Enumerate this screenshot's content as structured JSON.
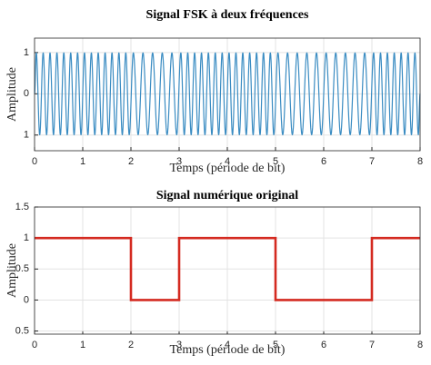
{
  "chart_data": [
    {
      "type": "line",
      "title": "Signal FSK à deux fréquences",
      "xlabel": "Temps (période de bit)",
      "ylabel": "Amplitude",
      "xlim": [
        0,
        8
      ],
      "xticks": [
        0,
        1,
        2,
        3,
        4,
        5,
        6,
        7,
        8
      ],
      "ylim": [
        -1.38,
        1.35
      ],
      "yticks": [
        {
          "value": -1,
          "label": "1"
        },
        0,
        1
      ],
      "grid": true,
      "smooth": true,
      "series": [
        {
          "color": "#3a8cc2",
          "x": [
            0,
            0.036,
            0.107,
            0.179,
            0.25,
            0.321,
            0.393,
            0.464,
            0.536,
            0.607,
            0.679,
            0.75,
            0.821,
            0.893,
            0.964,
            1.036,
            1.107,
            1.179,
            1.25,
            1.321,
            1.393,
            1.464,
            1.536,
            1.607,
            1.679,
            1.75,
            1.821,
            1.893,
            1.964,
            2.05,
            2.15,
            2.25,
            2.35,
            2.45,
            2.55,
            2.65,
            2.75,
            2.85,
            2.95,
            3.036,
            3.107,
            3.179,
            3.25,
            3.321,
            3.393,
            3.464,
            3.536,
            3.607,
            3.679,
            3.75,
            3.821,
            3.893,
            3.964,
            4.036,
            4.107,
            4.179,
            4.25,
            4.321,
            4.393,
            4.464,
            4.536,
            4.607,
            4.679,
            4.75,
            4.821,
            4.893,
            4.964,
            5.05,
            5.15,
            5.25,
            5.35,
            5.45,
            5.55,
            5.65,
            5.75,
            5.85,
            5.95,
            6.05,
            6.15,
            6.25,
            6.35,
            6.45,
            6.55,
            6.65,
            6.75,
            6.85,
            6.95,
            7.036,
            7.107,
            7.179,
            7.25,
            7.321,
            7.393,
            7.464,
            7.536,
            7.607,
            7.679,
            7.75,
            7.821,
            7.893,
            7.964,
            8
          ],
          "values": [
            0,
            1,
            -1,
            1,
            -1,
            1,
            -1,
            1,
            -1,
            1,
            -1,
            1,
            -1,
            1,
            -1,
            1,
            -1,
            1,
            -1,
            1,
            -1,
            1,
            -1,
            1,
            -1,
            1,
            -1,
            1,
            -1,
            1,
            -1,
            1,
            -1,
            1,
            -1,
            1,
            -1,
            1,
            -1,
            1,
            -1,
            1,
            -1,
            1,
            -1,
            1,
            -1,
            1,
            -1,
            1,
            -1,
            1,
            -1,
            1,
            -1,
            1,
            -1,
            1,
            -1,
            1,
            -1,
            1,
            -1,
            1,
            -1,
            1,
            -1,
            1,
            -1,
            1,
            -1,
            1,
            -1,
            1,
            -1,
            1,
            -1,
            1,
            -1,
            1,
            -1,
            1,
            -1,
            1,
            -1,
            1,
            -1,
            1,
            -1,
            1,
            -1,
            1,
            -1,
            1,
            -1,
            1,
            -1,
            1,
            -1,
            1,
            -1,
            0
          ]
        }
      ]
    },
    {
      "type": "line",
      "title": "Signal numérique original",
      "xlabel": "Temps (période de bit)",
      "ylabel": "Amplitude",
      "xlim": [
        0,
        8
      ],
      "xticks": [
        0,
        1,
        2,
        3,
        4,
        5,
        6,
        7,
        8
      ],
      "ylim": [
        -0.55,
        1.5
      ],
      "yticks": [
        {
          "value": -0.5,
          "label": "0.5"
        },
        0,
        0.5,
        1,
        1.5
      ],
      "grid": true,
      "smooth": false,
      "series": [
        {
          "color": "#d42a20",
          "x": [
            0,
            2,
            2,
            3,
            3,
            5,
            5,
            7,
            7,
            8
          ],
          "values": [
            1,
            1,
            0,
            0,
            1,
            1,
            0,
            0,
            1,
            1
          ]
        }
      ]
    }
  ]
}
